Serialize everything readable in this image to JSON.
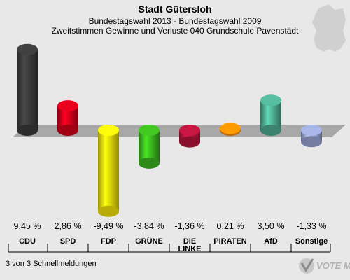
{
  "header": {
    "title": "Stadt Gütersloh",
    "subtitle": "Bundestagswahl 2013 - Bundestagswahl 2009",
    "description": "Zweitstimmen Gewinne und Verluste 040 Grundschule Pavenstädt"
  },
  "footer": {
    "note": "3 von 3 Schnellmeldungen"
  },
  "watermark": {
    "text": "VOTE MANAGER"
  },
  "chart_data": {
    "type": "bar",
    "title": "Zweitstimmen Gewinne und Verluste 040 Grundschule Pavenstädt",
    "categories": [
      "CDU",
      "SPD",
      "FDP",
      "GRÜNE",
      "DIE LINKE",
      "PIRATEN",
      "AfD",
      "Sonstige"
    ],
    "category_display": [
      "CDU",
      "SPD",
      "FDP",
      "GRÜNE",
      [
        "DIE",
        "LINKE"
      ],
      "PIRATEN",
      "AfD",
      "Sonstige"
    ],
    "values": [
      9.45,
      2.86,
      -9.49,
      -3.84,
      -1.36,
      0.21,
      3.5,
      -1.33
    ],
    "value_labels": [
      "9,45 %",
      "2,86 %",
      "-9,49 %",
      "-3,84 %",
      "-1,36 %",
      "0,21 %",
      "3,50 %",
      "-1,33 %"
    ],
    "colors": [
      "#3a3a3a",
      "#d6001b",
      "#f5e50a",
      "#3cb81e",
      "#b8143c",
      "#ff8c00",
      "#4fae92",
      "#9aa6d6"
    ],
    "ylim": [
      -10,
      10
    ],
    "baseline": 0
  }
}
